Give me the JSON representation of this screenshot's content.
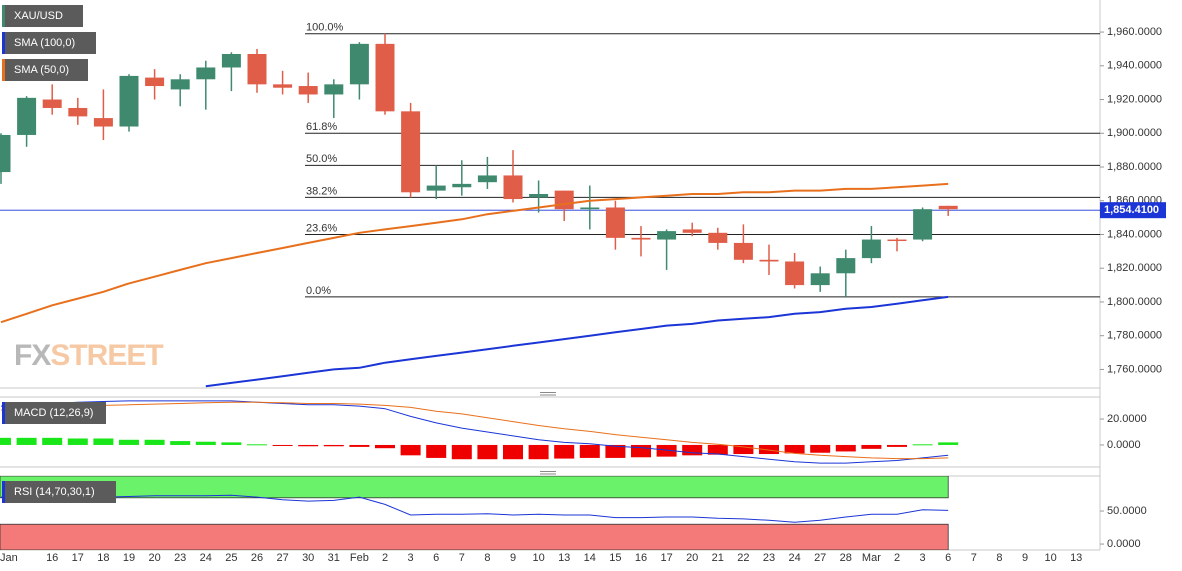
{
  "chart_data": [
    {
      "type": "candlestick",
      "categories": [
        "Jan",
        null,
        "16",
        "17",
        "18",
        "19",
        "20",
        "23",
        "24",
        "25",
        "26",
        "27",
        "30",
        "31",
        "Feb",
        "2",
        "3",
        "6",
        "7",
        "8",
        "9",
        "10",
        "13",
        "14",
        "15",
        "16",
        "17",
        "20",
        "21",
        "22",
        "23",
        "24",
        "27",
        "28",
        "Mar",
        "2",
        "3",
        "6",
        "7",
        "8",
        "9",
        "10",
        "13"
      ],
      "series": [
        {
          "name": "XAU/USD",
          "up_color": "#3f8a6f",
          "down_color": "#e05d48",
          "open": [
            1877,
            1899,
            1920,
            1915,
            1909,
            1904,
            1933,
            1926,
            1932,
            1939,
            1947,
            1929,
            1928,
            1923,
            1929,
            1953,
            1913,
            1866,
            1868,
            1871,
            1875,
            1862,
            1866,
            1855,
            1856,
            1838,
            1837,
            1843,
            1841,
            1835,
            1825,
            1824,
            1810,
            1817,
            1826,
            1837,
            1837,
            1857,
            null,
            null,
            null,
            null,
            null
          ],
          "high": [
            1900,
            1922,
            1929,
            1921,
            1926,
            1935,
            1938,
            1935,
            1943,
            1948,
            1950,
            1937,
            1936,
            1932,
            1954,
            1959,
            1918,
            1881,
            1884,
            1886,
            1890,
            1872,
            1866,
            1869,
            1860,
            1845,
            1843,
            1847,
            1844,
            1846,
            1834,
            1829,
            1821,
            1831,
            1845,
            1838,
            1856,
            1857,
            null,
            null,
            null,
            null,
            null
          ],
          "low": [
            1870,
            1892,
            1911,
            1905,
            1896,
            1901,
            1920,
            1916,
            1914,
            1925,
            1924,
            1923,
            1918,
            1909,
            1920,
            1911,
            1862,
            1861,
            1863,
            1867,
            1859,
            1853,
            1848,
            1843,
            1831,
            1827,
            1819,
            1839,
            1831,
            1823,
            1816,
            1808,
            1806,
            1803,
            1823,
            1830,
            1836,
            1851,
            null,
            null,
            null,
            null,
            null
          ],
          "close": [
            1899,
            1921,
            1915,
            1910,
            1904,
            1934,
            1928,
            1932,
            1939,
            1947,
            1929,
            1927,
            1923,
            1929,
            1953,
            1913,
            1865,
            1869,
            1870,
            1875,
            1861,
            1864,
            1855,
            1856,
            1838,
            1837,
            1842,
            1841,
            1835,
            1825,
            1824,
            1810,
            1817,
            1826,
            1837,
            1836.5,
            1855,
            1855,
            null,
            null,
            null,
            null,
            null
          ]
        },
        {
          "name": "SMA (100,0)",
          "color": "#1b35d6",
          "values": [
            null,
            null,
            null,
            null,
            null,
            null,
            null,
            null,
            1750,
            1752,
            1754,
            1756,
            1758,
            1760,
            1761,
            1764,
            1766,
            1768,
            1770,
            1772,
            1774,
            1776,
            1778,
            1780,
            1782,
            1784,
            1786,
            1787,
            1789,
            1790,
            1791,
            1793,
            1794,
            1796,
            1797,
            1799,
            1801,
            1803,
            null,
            null,
            null,
            null,
            null
          ]
        },
        {
          "name": "SMA (50,0)",
          "color": "#e8701c",
          "values": [
            1788,
            1793,
            1798,
            1802,
            1806,
            1811,
            1815,
            1819,
            1823,
            1826,
            1829,
            1832,
            1835,
            1838,
            1841,
            1843,
            1845,
            1847,
            1849,
            1852,
            1854,
            1856,
            1858,
            1860,
            1861,
            1862,
            1863,
            1864,
            1864,
            1865,
            1865,
            1866,
            1866,
            1867,
            1867,
            1868,
            1869,
            1870,
            null,
            null,
            null,
            null,
            null
          ]
        }
      ],
      "fib_levels": [
        {
          "label": "100.0%",
          "value": 1959
        },
        {
          "label": "61.8%",
          "value": 1900
        },
        {
          "label": "50.0%",
          "value": 1881
        },
        {
          "label": "38.2%",
          "value": 1862
        },
        {
          "label": "23.6%",
          "value": 1840
        },
        {
          "label": "0.0%",
          "value": 1803
        }
      ],
      "last_price": 1854.41,
      "last_price_label": "1,854.4100",
      "last_price_color": "#1b35d6",
      "ylim": [
        1749,
        1979
      ],
      "yticks": [
        {
          "value": 1760,
          "label": "1,760.0000"
        },
        {
          "value": 1780,
          "label": "1,780.0000"
        },
        {
          "value": 1800,
          "label": "1,800.0000"
        },
        {
          "value": 1820,
          "label": "1,820.0000"
        },
        {
          "value": 1840,
          "label": "1,840.0000"
        },
        {
          "value": 1860,
          "label": "1,860.0000"
        },
        {
          "value": 1880,
          "label": "1,880.0000"
        },
        {
          "value": 1900,
          "label": "1,900.0000"
        },
        {
          "value": 1920,
          "label": "1,920.0000"
        },
        {
          "value": 1940,
          "label": "1,940.0000"
        },
        {
          "value": 1960,
          "label": "1,960.0000"
        }
      ],
      "watermark": [
        "FX",
        "STREET"
      ]
    },
    {
      "type": "macd",
      "name": "MACD (12,26,9)",
      "histogram": {
        "up_color": "#19e619",
        "down_color": "#ee0000",
        "values": [
          5.5,
          5.5,
          5.5,
          5,
          5,
          4,
          4,
          3,
          2.5,
          2,
          0.5,
          -0.5,
          -1,
          -1,
          -1.5,
          -2.5,
          -8,
          -10,
          -11,
          -11,
          -11,
          -11,
          -10.5,
          -10,
          -10,
          -9.5,
          -9,
          -8,
          -7.5,
          -7,
          -7,
          -6.5,
          -6,
          -5,
          -3,
          -1.5,
          0.5,
          2,
          null,
          null,
          null,
          null,
          null
        ]
      },
      "series": [
        {
          "color": "#1b35d6",
          "values": [
            30,
            31,
            32,
            33,
            33.5,
            34,
            34,
            34,
            34,
            34,
            33,
            32,
            31,
            31,
            30,
            28,
            22,
            17,
            13,
            10,
            7,
            4,
            2,
            1,
            -1,
            -2,
            -4,
            -6,
            -7,
            -9,
            -11,
            -13,
            -14,
            -14,
            -13,
            -12,
            -10,
            -8,
            null,
            null,
            null,
            null,
            null
          ]
        },
        {
          "color": "#e8701c",
          "values": [
            27,
            28,
            29,
            30,
            30.5,
            31,
            31.5,
            32,
            32.5,
            33,
            33,
            32.5,
            32,
            32,
            31.5,
            30.5,
            29,
            26,
            24,
            21,
            18,
            15,
            12.5,
            10.5,
            8,
            6,
            4,
            2,
            0.5,
            -1.5,
            -4,
            -6.5,
            -8,
            -9,
            -10,
            -10.5,
            -10.5,
            -10,
            null,
            null,
            null,
            null,
            null
          ]
        }
      ],
      "ylim": [
        -17,
        37
      ],
      "yticks": [
        {
          "value": 20,
          "label": "20.0000"
        },
        {
          "value": 0,
          "label": "0.0000"
        }
      ]
    },
    {
      "type": "rsi",
      "name": "RSI (14,70,30,1)",
      "series": [
        {
          "color": "#1b35d6",
          "values": [
            71,
            71,
            71,
            71,
            71,
            72,
            73,
            73,
            73,
            74,
            71,
            67,
            65,
            66,
            71,
            60,
            44,
            45,
            45,
            46,
            44,
            45,
            44,
            44,
            40,
            40,
            41,
            41,
            39,
            38,
            36,
            33,
            36,
            41,
            45,
            45,
            52,
            51,
            null,
            null,
            null,
            null,
            null
          ]
        }
      ],
      "overbought": 70,
      "oversold": 30,
      "overbought_color": "#6af26a",
      "oversold_color": "#f47a7a",
      "ylim": [
        -9,
        103
      ],
      "yticks": [
        {
          "value": 50,
          "label": "50.0000"
        },
        {
          "value": 0,
          "label": "0.0000"
        }
      ]
    }
  ]
}
